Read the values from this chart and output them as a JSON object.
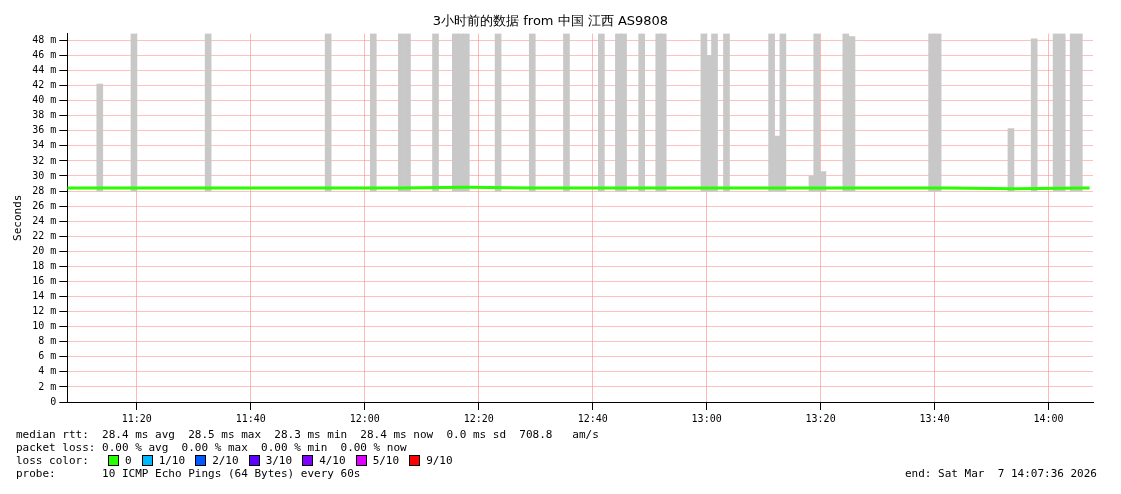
{
  "chart_data": {
    "type": "line",
    "title": "3小时前的数据 from 中国 江西 AS9808",
    "ylabel": "Seconds",
    "xlim": [
      11.13,
      14.13
    ],
    "xticks": [
      {
        "value": 11.3333,
        "label": "11:20"
      },
      {
        "value": 11.6667,
        "label": "11:40"
      },
      {
        "value": 12,
        "label": "12:00"
      },
      {
        "value": 12.3333,
        "label": "12:20"
      },
      {
        "value": 12.6667,
        "label": "12:40"
      },
      {
        "value": 13,
        "label": "13:00"
      },
      {
        "value": 13.3333,
        "label": "13:20"
      },
      {
        "value": 13.6667,
        "label": "13:40"
      },
      {
        "value": 14,
        "label": "14:00"
      }
    ],
    "ylim": [
      0,
      48.9
    ],
    "yticks": [
      0,
      {
        "value": 2,
        "label": "2 m"
      },
      {
        "value": 4,
        "label": "4 m"
      },
      {
        "value": 6,
        "label": "6 m"
      },
      {
        "value": 8,
        "label": "8 m"
      },
      {
        "value": 10,
        "label": "10 m"
      },
      {
        "value": 12,
        "label": "12 m"
      },
      {
        "value": 14,
        "label": "14 m"
      },
      {
        "value": 16,
        "label": "16 m"
      },
      {
        "value": 18,
        "label": "18 m"
      },
      {
        "value": 20,
        "label": "20 m"
      },
      {
        "value": 22,
        "label": "22 m"
      },
      {
        "value": 24,
        "label": "24 m"
      },
      {
        "value": 26,
        "label": "26 m"
      },
      {
        "value": 28,
        "label": "28 m"
      },
      {
        "value": 30,
        "label": "30 m"
      },
      {
        "value": 32,
        "label": "32 m"
      },
      {
        "value": 34,
        "label": "34 m"
      },
      {
        "value": 36,
        "label": "36 m"
      },
      {
        "value": 38,
        "label": "38 m"
      },
      {
        "value": 40,
        "label": "40 m"
      },
      {
        "value": 42,
        "label": "42 m"
      },
      {
        "value": 44,
        "label": "44 m"
      },
      {
        "value": 46,
        "label": "46 m"
      },
      {
        "value": 48,
        "label": "48 m"
      }
    ],
    "grid": true,
    "legend": "bottom",
    "legend_title": "loss color:",
    "series": [
      {
        "type": "bar",
        "color": "#c8c8c8",
        "x": [
          11.225,
          11.325,
          11.542,
          11.893,
          12.025,
          12.107,
          12.125,
          12.207,
          12.265,
          12.28,
          12.297,
          12.39,
          12.49,
          12.59,
          12.692,
          12.742,
          12.757,
          12.81,
          12.86,
          12.873,
          12.992,
          13.008,
          13.023,
          13.058,
          13.19,
          13.208,
          13.223,
          13.308,
          13.322,
          13.34,
          13.407,
          13.425,
          13.658,
          13.677,
          13.89,
          13.958,
          14.022,
          14.04,
          14.072,
          14.09
        ],
        "base": [
          28,
          28,
          28,
          28,
          28,
          28,
          28,
          28,
          28,
          28,
          28,
          28,
          28,
          28,
          28,
          28,
          28,
          28,
          28,
          28,
          28,
          28,
          28,
          28,
          28,
          28,
          28,
          28,
          28,
          28,
          28,
          28,
          28,
          28,
          28,
          28,
          28,
          28,
          28,
          28
        ],
        "values": [
          14.2,
          20.9,
          20.9,
          20.9,
          20.9,
          20.9,
          20.9,
          20.9,
          20.9,
          20.9,
          20.9,
          20.9,
          20.9,
          20.9,
          20.9,
          20.9,
          20.9,
          20.9,
          20.9,
          20.9,
          20.9,
          18,
          20.9,
          20.9,
          20.9,
          7.3,
          20.9,
          2,
          20.9,
          2.6,
          20.9,
          20.5,
          20.9,
          20.9,
          8.3,
          20.2,
          20.9,
          20.9,
          20.9,
          20.9
        ]
      },
      {
        "name": "0",
        "color": "#26ff00",
        "x": [
          11.13,
          11.3,
          11.5,
          11.7,
          11.9,
          12.1,
          12.3,
          12.5,
          12.7,
          12.9,
          13.1,
          13.3,
          13.5,
          13.7,
          13.9,
          14.1,
          14.12
        ],
        "values": [
          28.4,
          28.4,
          28.4,
          28.4,
          28.4,
          28.4,
          28.5,
          28.4,
          28.4,
          28.4,
          28.4,
          28.4,
          28.4,
          28.4,
          28.3,
          28.4,
          28.4
        ]
      },
      {
        "name": "1/10",
        "color": "#00b8ff"
      },
      {
        "name": "2/10",
        "color": "#0059ff"
      },
      {
        "name": "3/10",
        "color": "#5e00ff"
      },
      {
        "name": "4/10",
        "color": "#7e00ff"
      },
      {
        "name": "5/10",
        "color": "#dd00ff"
      },
      {
        "name": "9/10",
        "color": "#ff0000"
      }
    ],
    "annotations": [
      "median rtt:  28.4 ms avg  28.5 ms max  28.3 ms min  28.4 ms now  0.0 ms sd  708.8   am/s",
      "packet loss: 0.00 % avg  0.00 % max  0.00 % min  0.00 % now",
      "probe:       10 ICMP Echo Pings (64 Bytes) every 60s",
      "end: Sat Mar  7 14:07:36 2026"
    ]
  }
}
